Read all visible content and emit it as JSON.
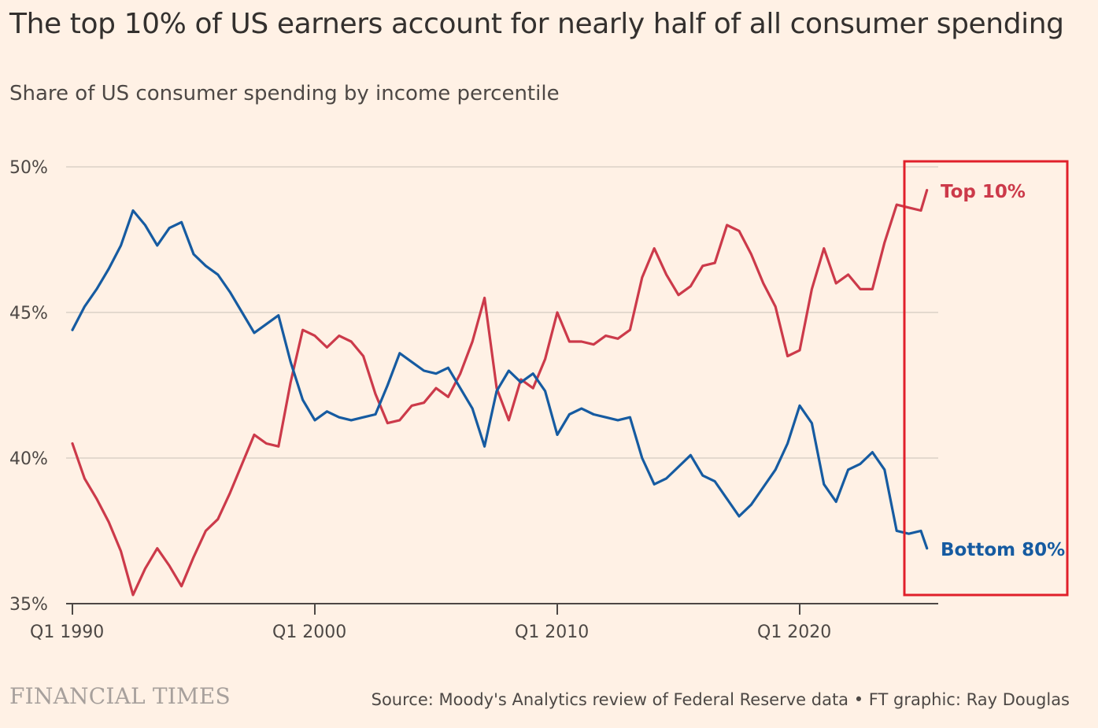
{
  "header": {
    "title": "The top 10% of US earners account for nearly half of all consumer spending",
    "subtitle": "Share of US consumer spending by income percentile"
  },
  "footer": {
    "logo": "FINANCIAL TIMES",
    "source": "Source: Moody's Analytics review of Federal Reserve data • FT graphic: Ray Douglas"
  },
  "colors": {
    "background": "#fff1e5",
    "top10": "#cc3a4a",
    "bottom80": "#165ba1",
    "grid": "#d4cbc1",
    "highlight_box": "#e0202a"
  },
  "chart_data": {
    "type": "line",
    "ylim": [
      35,
      50
    ],
    "yticks": [
      35,
      40,
      45,
      50
    ],
    "ytick_labels": [
      "35%",
      "40%",
      "45%",
      "50%"
    ],
    "xlim": [
      1990,
      2025.75
    ],
    "xticks": [
      1990,
      2000,
      2010,
      2020
    ],
    "xtick_labels": [
      "Q1 1990",
      "Q1 2000",
      "Q1 2010",
      "Q1 2020"
    ],
    "x": [
      1990,
      1990.5,
      1991,
      1991.5,
      1992,
      1992.5,
      1993,
      1993.5,
      1994,
      1994.5,
      1995,
      1995.5,
      1996,
      1996.5,
      1997,
      1997.5,
      1998,
      1998.5,
      1999,
      1999.5,
      2000,
      2000.5,
      2001,
      2001.5,
      2002,
      2002.5,
      2003,
      2003.5,
      2004,
      2004.5,
      2005,
      2005.5,
      2006,
      2006.5,
      2007,
      2007.5,
      2008,
      2008.5,
      2009,
      2009.5,
      2010,
      2010.5,
      2011,
      2011.5,
      2012,
      2012.5,
      2013,
      2013.5,
      2014,
      2014.5,
      2015,
      2015.5,
      2016,
      2016.5,
      2017,
      2017.5,
      2018,
      2018.5,
      2019,
      2019.5,
      2020,
      2020.5,
      2021,
      2021.5,
      2022,
      2022.5,
      2023,
      2023.5,
      2024,
      2024.5,
      2025,
      2025.25
    ],
    "series": [
      {
        "name": "Top 10%",
        "color": "#cc3a4a",
        "values": [
          40.5,
          39.3,
          38.6,
          37.8,
          36.8,
          35.3,
          36.2,
          36.9,
          36.3,
          35.6,
          36.6,
          37.5,
          37.9,
          38.8,
          39.8,
          40.8,
          40.5,
          40.4,
          42.6,
          44.4,
          44.2,
          43.8,
          44.2,
          44.0,
          43.5,
          42.2,
          41.2,
          41.3,
          41.8,
          41.9,
          42.4,
          42.1,
          42.9,
          44.0,
          45.5,
          42.4,
          41.3,
          42.7,
          42.4,
          43.4,
          45.0,
          44.0,
          44.0,
          43.9,
          44.2,
          44.1,
          44.4,
          46.2,
          47.2,
          46.3,
          45.6,
          45.9,
          46.6,
          46.7,
          48.0,
          47.8,
          47.0,
          46.0,
          45.2,
          43.5,
          43.7,
          45.8,
          47.2,
          46.0,
          46.3,
          45.8,
          45.8,
          47.4,
          48.7,
          48.6,
          48.5,
          49.2
        ]
      },
      {
        "name": "Bottom 80%",
        "color": "#165ba1",
        "values": [
          44.4,
          45.2,
          45.8,
          46.5,
          47.3,
          48.5,
          48.0,
          47.3,
          47.9,
          48.1,
          47.0,
          46.6,
          46.3,
          45.7,
          45.0,
          44.3,
          44.6,
          44.9,
          43.3,
          42.0,
          41.3,
          41.6,
          41.4,
          41.3,
          41.4,
          41.5,
          42.5,
          43.6,
          43.3,
          43.0,
          42.9,
          43.1,
          42.4,
          41.7,
          40.4,
          42.3,
          43.0,
          42.6,
          42.9,
          42.3,
          40.8,
          41.5,
          41.7,
          41.5,
          41.4,
          41.3,
          41.4,
          40.0,
          39.1,
          39.3,
          39.7,
          40.1,
          39.4,
          39.2,
          38.6,
          38.0,
          38.4,
          39.0,
          39.6,
          40.5,
          41.8,
          41.2,
          39.1,
          38.5,
          39.6,
          39.8,
          40.2,
          39.6,
          37.5,
          37.4,
          37.5,
          36.9
        ]
      }
    ],
    "series_labels": [
      "Top 10%",
      "Bottom 80%"
    ]
  }
}
